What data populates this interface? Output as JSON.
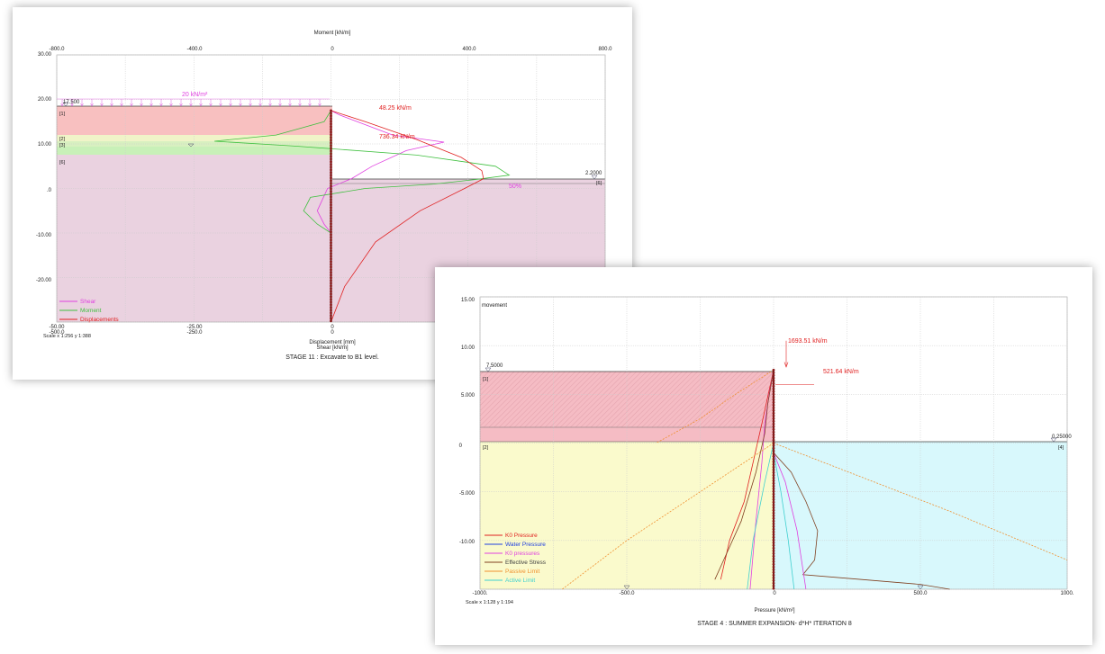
{
  "chart_data": [
    {
      "type": "line",
      "title": "STAGE 11 :    Excavate to B1 level.",
      "top_axis_label": "Moment [kN/m]",
      "top_ticks": [
        "-800.0",
        "-400.0",
        "0",
        "400.0",
        "800.0"
      ],
      "y_ticks": [
        "30.00",
        "20.00",
        "10.00",
        ".0",
        "-10.00",
        "-20.00"
      ],
      "bottom_ticks_1": [
        "-50.00",
        "-25.00",
        "0"
      ],
      "bottom_ticks_2": [
        "-500.0",
        "-250.0",
        "0"
      ],
      "xlabel": "Displacement [mm]",
      "xlabel2": "Shear [kN/m]",
      "scale_text": "Scale x 1:256  y 1:388",
      "ylim": [
        -30,
        30
      ],
      "xlim_moment": [
        -800,
        800
      ],
      "levels": {
        "retained": "17.500",
        "excavation": "2.2000"
      },
      "layer_labels": [
        "[1]",
        "[2]",
        "[3]",
        "[6]",
        "[6]"
      ],
      "annotations": [
        "20 kN/m²",
        "48.25 kN/m",
        "736.34 kN/m",
        "50%"
      ],
      "legend": [
        {
          "name": "Shear",
          "color": "#e040e0"
        },
        {
          "name": "Moment",
          "color": "#40c040"
        },
        {
          "name": "Displacements",
          "color": "#e02020"
        }
      ],
      "series": [
        {
          "name": "Shear",
          "color": "#e040e0",
          "points": [
            [
              0,
              17.5
            ],
            [
              25,
              16.5
            ],
            [
              180,
              12
            ],
            [
              330,
              10.4
            ],
            [
              220,
              8.5
            ],
            [
              120,
              5
            ],
            [
              60,
              2.2
            ],
            [
              -10,
              0
            ],
            [
              -40,
              -5
            ],
            [
              -20,
              -8
            ],
            [
              0,
              -10
            ]
          ]
        },
        {
          "name": "Moment",
          "color": "#40c040",
          "points": [
            [
              0,
              17.5
            ],
            [
              -20,
              15
            ],
            [
              -160,
              12
            ],
            [
              -340,
              10.6
            ],
            [
              -100,
              9.5
            ],
            [
              250,
              7.5
            ],
            [
              480,
              5
            ],
            [
              520,
              3
            ],
            [
              420,
              2
            ],
            [
              300,
              1
            ],
            [
              100,
              0
            ],
            [
              -60,
              -2
            ],
            [
              -80,
              -5
            ],
            [
              -40,
              -8
            ],
            [
              0,
              -10
            ]
          ]
        },
        {
          "name": "Displacements",
          "color": "#e02020",
          "points": [
            [
              0,
              17.5
            ],
            [
              100,
              15
            ],
            [
              250,
              11
            ],
            [
              380,
              7
            ],
            [
              440,
              4
            ],
            [
              445,
              2.2
            ],
            [
              390,
              0
            ],
            [
              260,
              -5
            ],
            [
              130,
              -12
            ],
            [
              40,
              -22
            ],
            [
              0,
              -30
            ]
          ]
        }
      ]
    },
    {
      "type": "line",
      "title": "STAGE 4 : SUMMER EXPANSION- d*H* ITERATION 8",
      "corner_label": "movement",
      "y_ticks": [
        "15.00",
        "10.00",
        "5.000",
        "0",
        "-5.000",
        "-10.00"
      ],
      "x_ticks": [
        "-1000.",
        "-500.0",
        "0",
        "500.0",
        "1000."
      ],
      "xlabel": "Pressure [kN/m²]",
      "scale_text": "Scale x 1:128  y 1:194",
      "ylim": [
        -15,
        15
      ],
      "xlim": [
        -1000,
        1000
      ],
      "levels": {
        "retained": "7.5000",
        "excavation": "0.25000"
      },
      "layer_labels": [
        "[1]",
        "[2]",
        "[4]"
      ],
      "annotations": [
        "1693.51 kN/m",
        "521.64 kN/m"
      ],
      "legend": [
        {
          "name": "K0 Pressure",
          "color": "#e02020"
        },
        {
          "name": "Water Pressure",
          "color": "#2040e0"
        },
        {
          "name": "K0 pressures",
          "color": "#e040e0"
        },
        {
          "name": "Effective Stress",
          "color": "#804020"
        },
        {
          "name": "Passive Limit",
          "color": "#f09030"
        },
        {
          "name": "Active Limit",
          "color": "#40d0d0"
        }
      ],
      "series": [
        {
          "name": "K0 Pressure",
          "color": "#e02020",
          "points": [
            [
              0,
              7.5
            ],
            [
              -40,
              2
            ],
            [
              -100,
              -6
            ],
            [
              -150,
              -10
            ],
            [
              -180,
              -14
            ]
          ]
        },
        {
          "name": "K0 pressures",
          "color": "#e040e0",
          "points": [
            [
              0,
              7.5
            ],
            [
              -15,
              5
            ],
            [
              -30,
              2
            ],
            [
              -40,
              -2
            ],
            [
              -60,
              -8
            ],
            [
              -80,
              -15
            ]
          ]
        },
        {
          "name": "Effective Stress",
          "color": "#804020",
          "points": [
            [
              0,
              7.5
            ],
            [
              -20,
              4
            ],
            [
              -30,
              1
            ],
            [
              -60,
              -3
            ],
            [
              -110,
              -8
            ],
            [
              -170,
              -12
            ],
            [
              -200,
              -14
            ]
          ]
        },
        {
          "name": "Passive Limit",
          "color": "#f09030",
          "points": [
            [
              0,
              0
            ],
            [
              -300,
              -6
            ],
            [
              -500,
              -10
            ],
            [
              -720,
              -15
            ]
          ]
        },
        {
          "name": "Active Limit",
          "color": "#40d0d0",
          "points": [
            [
              0,
              0
            ],
            [
              -30,
              -4
            ],
            [
              -70,
              -10
            ],
            [
              -90,
              -15
            ]
          ]
        },
        {
          "name": "Passive Limit",
          "color": "#f09030",
          "points": [
            [
              0,
              7.5
            ],
            [
              -130,
              5
            ],
            [
              -250,
              2.5
            ],
            [
              -400,
              0
            ]
          ]
        },
        {
          "name": "Passive Limit",
          "color": "#f09030",
          "points": [
            [
              0,
              0
            ],
            [
              300,
              -3.5
            ],
            [
              600,
              -7
            ],
            [
              1000,
              -12
            ]
          ]
        },
        {
          "name": "Effective Stress",
          "color": "#804020",
          "points": [
            [
              0,
              -1
            ],
            [
              60,
              -3
            ],
            [
              110,
              -6
            ],
            [
              150,
              -9
            ],
            [
              140,
              -12
            ],
            [
              100,
              -13.5
            ],
            [
              300,
              -14
            ],
            [
              500,
              -14.5
            ],
            [
              600,
              -15
            ]
          ]
        },
        {
          "name": "K0 pressures",
          "color": "#e040e0",
          "points": [
            [
              0,
              -1
            ],
            [
              40,
              -4
            ],
            [
              80,
              -9
            ],
            [
              100,
              -13
            ],
            [
              110,
              -15
            ]
          ]
        },
        {
          "name": "Active Limit",
          "color": "#40d0d0",
          "points": [
            [
              0,
              -1
            ],
            [
              25,
              -5
            ],
            [
              50,
              -10
            ],
            [
              70,
              -15
            ]
          ]
        }
      ]
    }
  ]
}
